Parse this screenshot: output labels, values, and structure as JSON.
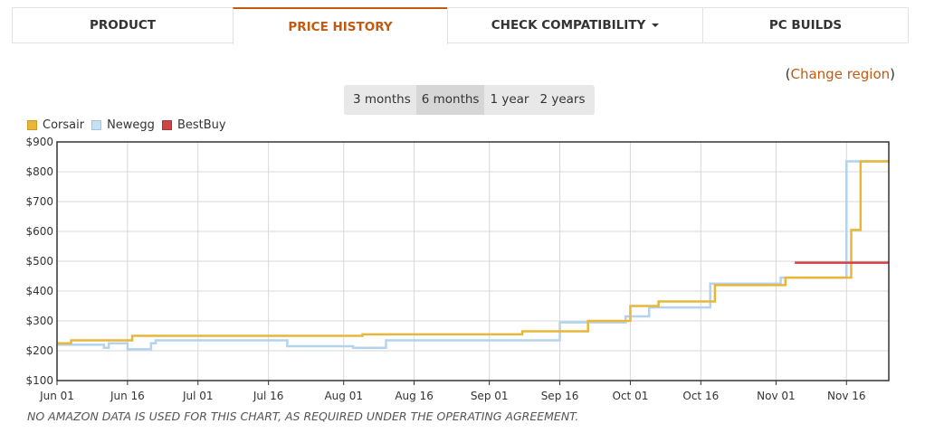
{
  "tabs": [
    {
      "label": "PRODUCT",
      "active": false
    },
    {
      "label": "PRICE HISTORY",
      "active": true
    },
    {
      "label": "CHECK COMPATIBILITY",
      "active": false,
      "dropdown": true
    },
    {
      "label": "PC BUILDS",
      "active": false
    }
  ],
  "region": {
    "open": "(",
    "link": "Change region",
    "close": ")"
  },
  "ranges": [
    {
      "label": "3 months",
      "active": false
    },
    {
      "label": "6 months",
      "active": true
    },
    {
      "label": "1 year",
      "active": false
    },
    {
      "label": "2 years",
      "active": false
    }
  ],
  "footnote": "NO AMAZON DATA IS USED FOR THIS CHART, AS REQUIRED UNDER THE OPERATING AGREEMENT.",
  "chart_data": {
    "type": "line",
    "title": "",
    "xlabel": "",
    "ylabel": "",
    "x_ticks": [
      "Jun 01",
      "Jun 16",
      "Jul 01",
      "Jul 16",
      "Aug 01",
      "Aug 16",
      "Sep 01",
      "Sep 16",
      "Oct 01",
      "Oct 16",
      "Nov 01",
      "Nov 16"
    ],
    "y_ticks": [
      "$100",
      "$200",
      "$300",
      "$400",
      "$500",
      "$600",
      "$700",
      "$800",
      "$900"
    ],
    "ylim": [
      100,
      900
    ],
    "grid": true,
    "legend": "top-left",
    "series": [
      {
        "name": "Corsair",
        "color": "#e8b73a",
        "step": true,
        "points": [
          [
            "Jun 01",
            225
          ],
          [
            "Jun 04",
            235
          ],
          [
            "Jun 17",
            250
          ],
          [
            "Aug 05",
            255
          ],
          [
            "Sep 08",
            265
          ],
          [
            "Sep 22",
            300
          ],
          [
            "Oct 01",
            350
          ],
          [
            "Oct 07",
            365
          ],
          [
            "Oct 19",
            420
          ],
          [
            "Nov 03",
            445
          ],
          [
            "Nov 17",
            605
          ],
          [
            "Nov 19",
            835
          ],
          [
            "Nov 25",
            835
          ]
        ]
      },
      {
        "name": "Newegg",
        "color": "#b3d3ee",
        "step": true,
        "points": [
          [
            "Jun 01",
            220
          ],
          [
            "Jun 11",
            210
          ],
          [
            "Jun 12",
            225
          ],
          [
            "Jun 16",
            205
          ],
          [
            "Jun 21",
            225
          ],
          [
            "Jun 22",
            235
          ],
          [
            "Jul 20",
            215
          ],
          [
            "Aug 03",
            210
          ],
          [
            "Aug 10",
            235
          ],
          [
            "Sep 16",
            295
          ],
          [
            "Sep 30",
            315
          ],
          [
            "Oct 05",
            345
          ],
          [
            "Oct 18",
            425
          ],
          [
            "Nov 02",
            445
          ],
          [
            "Nov 16",
            835
          ],
          [
            "Nov 25",
            835
          ]
        ]
      },
      {
        "name": "BestBuy",
        "color": "#cc4444",
        "step": true,
        "points": [
          [
            "Nov 05",
            495
          ],
          [
            "Nov 25",
            495
          ]
        ]
      }
    ]
  }
}
